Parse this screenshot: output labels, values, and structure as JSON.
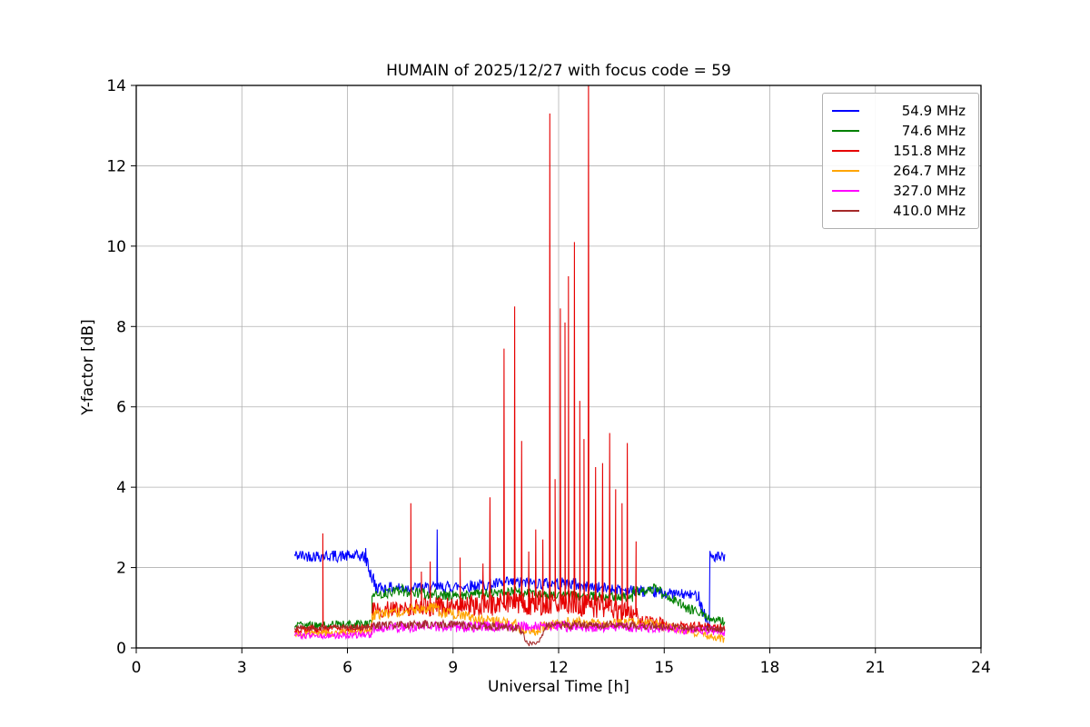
{
  "chart_data": {
    "type": "line",
    "title": "HUMAIN of 2025/12/27 with focus code = 59",
    "xlabel": "Universal Time [h]",
    "ylabel": "Y-factor [dB]",
    "xlim": [
      0,
      24
    ],
    "ylim": [
      0,
      14
    ],
    "xticks": [
      0,
      3,
      6,
      9,
      12,
      15,
      18,
      21,
      24
    ],
    "yticks": [
      0,
      2,
      4,
      6,
      8,
      10,
      12,
      14
    ],
    "grid": true,
    "grid_color": "#b0b0b0",
    "legend_position": "upper right",
    "time_coverage_hours": [
      4.5,
      16.75
    ],
    "series": [
      {
        "name": "54.9 MHz",
        "color": "#0000ff",
        "segments": [
          [
            4.5,
            6.5,
            2.3,
            2.28,
            0.15
          ],
          [
            6.5,
            6.8,
            2.3,
            1.5,
            0.25
          ],
          [
            6.8,
            8.5,
            1.5,
            1.5,
            0.14
          ],
          [
            8.5,
            10.5,
            1.5,
            1.6,
            0.15
          ],
          [
            10.5,
            12.5,
            1.62,
            1.6,
            0.15
          ],
          [
            12.5,
            14.5,
            1.55,
            1.4,
            0.14
          ],
          [
            14.5,
            16.0,
            1.4,
            1.3,
            0.13
          ],
          [
            16.0,
            16.28,
            1.2,
            0.5,
            0.18
          ],
          [
            16.3,
            16.72,
            2.3,
            2.2,
            0.16
          ]
        ],
        "spikes": [
          [
            8.55,
            2.95
          ]
        ]
      },
      {
        "name": "74.6 MHz",
        "color": "#008000",
        "segments": [
          [
            4.5,
            6.7,
            0.55,
            0.6,
            0.1
          ],
          [
            6.7,
            7.6,
            1.3,
            1.45,
            0.13
          ],
          [
            7.6,
            9.0,
            1.4,
            1.3,
            0.13
          ],
          [
            9.0,
            10.5,
            1.3,
            1.4,
            0.12
          ],
          [
            10.5,
            12.5,
            1.4,
            1.3,
            0.12
          ],
          [
            12.5,
            14.1,
            1.3,
            1.25,
            0.12
          ],
          [
            14.1,
            14.9,
            1.4,
            1.5,
            0.13
          ],
          [
            14.9,
            15.6,
            1.35,
            1.05,
            0.12
          ],
          [
            15.6,
            16.72,
            1.0,
            0.65,
            0.12
          ]
        ],
        "spikes": []
      },
      {
        "name": "151.8 MHz",
        "color": "#e60000",
        "segments": [
          [
            4.5,
            6.7,
            0.45,
            0.5,
            0.1
          ],
          [
            6.7,
            8.0,
            0.95,
            1.0,
            0.2
          ],
          [
            8.0,
            9.5,
            1.0,
            1.05,
            0.25
          ],
          [
            9.5,
            11.0,
            1.05,
            1.15,
            0.3
          ],
          [
            11.0,
            12.5,
            1.1,
            1.15,
            0.3
          ],
          [
            12.5,
            13.5,
            1.1,
            1.0,
            0.3
          ],
          [
            13.5,
            14.3,
            0.95,
            0.8,
            0.25
          ],
          [
            14.3,
            15.0,
            0.7,
            0.6,
            0.15
          ],
          [
            15.0,
            16.72,
            0.55,
            0.5,
            0.12
          ]
        ],
        "spikes": [
          [
            5.3,
            2.85
          ],
          [
            7.8,
            3.6
          ],
          [
            8.1,
            1.9
          ],
          [
            8.35,
            2.15
          ],
          [
            9.2,
            2.25
          ],
          [
            9.85,
            2.1
          ],
          [
            10.05,
            3.75
          ],
          [
            10.45,
            7.45
          ],
          [
            10.75,
            8.5
          ],
          [
            10.95,
            5.15
          ],
          [
            11.15,
            2.4
          ],
          [
            11.35,
            2.95
          ],
          [
            11.55,
            2.7
          ],
          [
            11.75,
            13.3
          ],
          [
            11.9,
            4.2
          ],
          [
            12.05,
            8.45
          ],
          [
            12.18,
            8.1
          ],
          [
            12.28,
            9.25
          ],
          [
            12.45,
            10.1
          ],
          [
            12.6,
            6.15
          ],
          [
            12.72,
            5.2
          ],
          [
            12.85,
            14.4
          ],
          [
            13.05,
            4.5
          ],
          [
            13.25,
            4.6
          ],
          [
            13.45,
            5.35
          ],
          [
            13.62,
            3.95
          ],
          [
            13.8,
            3.6
          ],
          [
            13.95,
            5.1
          ],
          [
            14.2,
            2.65
          ]
        ]
      },
      {
        "name": "264.7 MHz",
        "color": "#ffa500",
        "segments": [
          [
            4.5,
            6.7,
            0.35,
            0.4,
            0.09
          ],
          [
            6.7,
            7.6,
            0.8,
            0.9,
            0.13
          ],
          [
            7.6,
            8.6,
            0.95,
            1.0,
            0.13
          ],
          [
            8.6,
            9.6,
            0.9,
            0.75,
            0.13
          ],
          [
            9.6,
            10.8,
            0.7,
            0.6,
            0.13
          ],
          [
            10.8,
            11.4,
            0.5,
            0.4,
            0.12
          ],
          [
            11.4,
            12.3,
            0.5,
            0.65,
            0.13
          ],
          [
            12.3,
            13.6,
            0.65,
            0.6,
            0.12
          ],
          [
            13.6,
            14.8,
            0.62,
            0.6,
            0.12
          ],
          [
            14.8,
            15.8,
            0.55,
            0.45,
            0.12
          ],
          [
            15.8,
            16.72,
            0.4,
            0.22,
            0.1
          ]
        ],
        "spikes": []
      },
      {
        "name": "327.0 MHz",
        "color": "#ff00ff",
        "segments": [
          [
            4.5,
            6.7,
            0.3,
            0.32,
            0.08
          ],
          [
            6.7,
            9.0,
            0.5,
            0.55,
            0.13
          ],
          [
            9.0,
            11.0,
            0.52,
            0.55,
            0.14
          ],
          [
            11.0,
            13.0,
            0.55,
            0.52,
            0.13
          ],
          [
            13.0,
            15.0,
            0.52,
            0.5,
            0.12
          ],
          [
            15.0,
            16.72,
            0.48,
            0.4,
            0.11
          ]
        ],
        "spikes": []
      },
      {
        "name": "410.0 MHz",
        "color": "#a52a2a",
        "segments": [
          [
            4.5,
            6.7,
            0.5,
            0.52,
            0.07
          ],
          [
            6.7,
            9.0,
            0.55,
            0.6,
            0.1
          ],
          [
            9.0,
            10.9,
            0.58,
            0.5,
            0.1
          ],
          [
            10.9,
            11.1,
            0.45,
            0.15,
            0.08
          ],
          [
            11.1,
            11.45,
            0.1,
            0.12,
            0.06
          ],
          [
            11.45,
            11.65,
            0.2,
            0.5,
            0.08
          ],
          [
            11.65,
            13.5,
            0.55,
            0.58,
            0.1
          ],
          [
            13.5,
            15.5,
            0.56,
            0.52,
            0.09
          ],
          [
            15.5,
            16.72,
            0.5,
            0.45,
            0.08
          ]
        ],
        "spikes": []
      }
    ]
  }
}
